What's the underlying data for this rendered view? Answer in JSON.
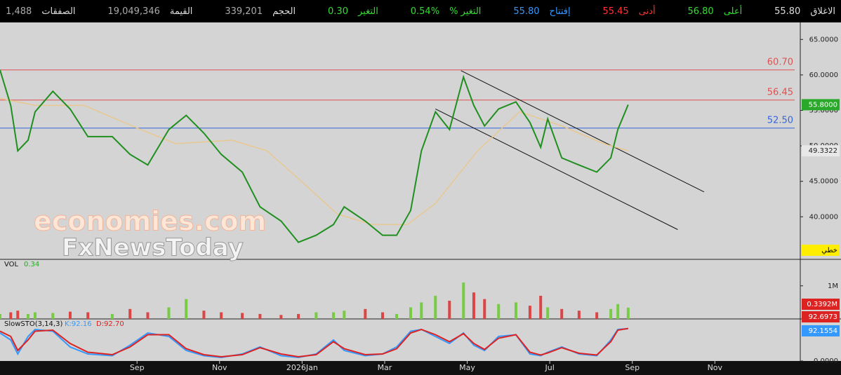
{
  "header": {
    "items": [
      {
        "label": "الاغلاق",
        "value": "55.80",
        "label_color": "#dddddd",
        "color": "#dddddd"
      },
      {
        "label": "أعلى",
        "value": "56.80",
        "label_color": "#33dd33",
        "color": "#33dd33"
      },
      {
        "label": "أدنى",
        "value": "55.45",
        "label_color": "#ff3333",
        "color": "#ff3333"
      },
      {
        "label": "إفتتاح",
        "value": "55.80",
        "label_color": "#3399ff",
        "color": "#3399ff"
      },
      {
        "label": "التغير %",
        "value": "0.54%",
        "label_color": "#33dd33",
        "color": "#33dd33"
      },
      {
        "label": "التغير",
        "value": "0.30",
        "label_color": "#33dd33",
        "color": "#33dd33"
      },
      {
        "label": "الحجم",
        "value": "339,201",
        "label_color": "#dddddd",
        "color": "#aaaaaa"
      },
      {
        "label": "القيمة",
        "value": "19,049,346",
        "label_color": "#dddddd",
        "color": "#aaaaaa"
      },
      {
        "label": "الصفقات",
        "value": "1,488",
        "label_color": "#dddddd",
        "color": "#aaaaaa"
      }
    ]
  },
  "watermark": [
    "economies.com",
    "FxNewsToday"
  ],
  "chart_data": [
    {
      "type": "line",
      "x": [
        -1.32,
        -1.06,
        -0.89,
        -0.64,
        -0.47,
        -0.04,
        0.38,
        0.81,
        1.4,
        1.83,
        2.26,
        2.77,
        3.19,
        3.62,
        4.04,
        4.55,
        4.98,
        5.49,
        5.91,
        6.34,
        6.76,
        7.02,
        7.53,
        7.95,
        8.29,
        8.63,
        8.89,
        9.23,
        9.57,
        9.91,
        10.16,
        10.42,
        10.76,
        11.18,
        11.52,
        11.78,
        11.95,
        12.29,
        12.71,
        13.14,
        13.48,
        13.65,
        13.9
      ],
      "series": [
        {
          "name": "price",
          "color": "#1f8f1f",
          "values": [
            60.7,
            55.7,
            49.3,
            50.8,
            54.8,
            57.7,
            55.2,
            51.3,
            51.3,
            48.8,
            47.3,
            52.3,
            54.3,
            51.8,
            48.8,
            46.3,
            41.4,
            39.4,
            36.4,
            37.4,
            38.9,
            41.4,
            39.4,
            37.4,
            37.4,
            40.9,
            49.3,
            54.8,
            52.3,
            59.7,
            55.7,
            52.8,
            55.2,
            56.2,
            53.3,
            49.8,
            53.8,
            48.3,
            47.3,
            46.3,
            48.3,
            52.3,
            55.8
          ]
        }
      ],
      "ma": {
        "color": "#e8c890",
        "x": [
          -1.32,
          -0.47,
          0.72,
          2.09,
          2.94,
          4.3,
          5.15,
          6,
          6.85,
          7.7,
          8.55,
          9.23,
          10.25,
          11.27,
          12.29,
          13.31,
          13.9
        ],
        "values": [
          56.7,
          55.7,
          55.7,
          52.3,
          50.3,
          50.8,
          49.3,
          44.9,
          40.4,
          38.9,
          38.9,
          41.9,
          49.3,
          54.8,
          52.8,
          50.3,
          49.3
        ]
      },
      "hlines": [
        {
          "value": 60.7,
          "label": "60.70",
          "color": "#e05050"
        },
        {
          "value": 56.45,
          "label": "56.45",
          "color": "#e05050"
        },
        {
          "value": 52.5,
          "label": "52.50",
          "color": "#3366dd"
        }
      ],
      "trendlines": [
        {
          "start": [
            9.85,
            60.6
          ],
          "end": [
            15.74,
            43.5
          ]
        },
        {
          "start": [
            9.23,
            55.2
          ],
          "end": [
            15.1,
            38.2
          ]
        }
      ],
      "xlim": [
        -1.32,
        18.07
      ],
      "xticks": [
        {
          "value": 2,
          "label": "Sep"
        },
        {
          "value": 4,
          "label": "Nov"
        },
        {
          "value": 6,
          "label": "2026Jan"
        },
        {
          "value": 8,
          "label": "Mar"
        },
        {
          "value": 10,
          "label": "May"
        },
        {
          "value": 12,
          "label": "Jul"
        },
        {
          "value": 14,
          "label": "Sep"
        },
        {
          "value": 16,
          "label": "Nov"
        }
      ],
      "ylim": [
        34,
        67.4
      ],
      "yticks": [
        {
          "value": 40,
          "label": "40.0000"
        },
        {
          "value": 45,
          "label": "45.0000"
        },
        {
          "value": 50,
          "label": "50.0000"
        },
        {
          "value": 55,
          "label": "55.0000"
        },
        {
          "value": 60,
          "label": "60.0000"
        },
        {
          "value": 65,
          "label": "65.0000"
        }
      ],
      "price_label": "55.8000",
      "ma_label": "49.3322",
      "mode_label": "خطي"
    },
    {
      "type": "bar",
      "name": "VOL",
      "current": "0.34",
      "up_color": "#77cc44",
      "down_color": "#dd4444",
      "x": [
        -1.32,
        -1.06,
        -0.89,
        -0.64,
        -0.47,
        -0.04,
        0.38,
        0.81,
        1.4,
        1.83,
        2.26,
        2.77,
        3.19,
        3.62,
        4.04,
        4.55,
        4.98,
        5.49,
        5.91,
        6.34,
        6.76,
        7.02,
        7.53,
        7.95,
        8.29,
        8.63,
        8.89,
        9.23,
        9.57,
        9.91,
        10.16,
        10.42,
        10.76,
        11.18,
        11.52,
        11.78,
        11.95,
        12.29,
        12.71,
        13.14,
        13.48,
        13.65,
        13.9
      ],
      "values": [
        0.15,
        0.2,
        0.25,
        0.15,
        0.2,
        0.18,
        0.22,
        0.2,
        0.15,
        0.3,
        0.2,
        0.35,
        0.6,
        0.25,
        0.2,
        0.18,
        0.15,
        0.12,
        0.15,
        0.2,
        0.2,
        0.25,
        0.3,
        0.2,
        0.15,
        0.35,
        0.5,
        0.7,
        0.55,
        1.1,
        0.8,
        0.6,
        0.45,
        0.5,
        0.4,
        0.7,
        0.35,
        0.3,
        0.25,
        0.2,
        0.3,
        0.45,
        0.34
      ],
      "ylim": [
        0,
        1.8
      ],
      "yticks": [
        {
          "value": 1,
          "label": "1M"
        }
      ],
      "axis_label": "0.3392M"
    },
    {
      "type": "line",
      "name": "SlowSTO(3,14,3)",
      "x": [
        -1.32,
        -1.06,
        -0.89,
        -0.64,
        -0.47,
        -0.04,
        0.38,
        0.81,
        1.4,
        1.83,
        2.26,
        2.77,
        3.19,
        3.62,
        4.04,
        4.55,
        4.98,
        5.49,
        5.91,
        6.34,
        6.76,
        7.02,
        7.53,
        7.95,
        8.29,
        8.63,
        8.89,
        9.23,
        9.57,
        9.91,
        10.16,
        10.42,
        10.76,
        11.18,
        11.52,
        11.78,
        11.95,
        12.29,
        12.71,
        13.14,
        13.48,
        13.65,
        13.9
      ],
      "series": [
        {
          "name": "K:92.16",
          "color": "#3399ff",
          "values": [
            80,
            60,
            20,
            70,
            90,
            85,
            40,
            20,
            15,
            45,
            80,
            70,
            30,
            15,
            10,
            20,
            40,
            15,
            10,
            20,
            60,
            30,
            15,
            20,
            40,
            85,
            90,
            70,
            50,
            80,
            45,
            30,
            70,
            75,
            20,
            15,
            25,
            40,
            20,
            15,
            60,
            90,
            92.16
          ]
        },
        {
          "name": "D:92.70",
          "color": "#dd2222",
          "values": [
            85,
            70,
            30,
            60,
            85,
            88,
            50,
            25,
            18,
            40,
            75,
            75,
            35,
            18,
            12,
            18,
            38,
            20,
            12,
            18,
            55,
            35,
            18,
            20,
            35,
            80,
            90,
            75,
            55,
            78,
            50,
            33,
            65,
            75,
            25,
            17,
            23,
            38,
            22,
            17,
            55,
            88,
            92.7
          ]
        }
      ],
      "ylim": [
        0,
        100
      ],
      "yticks": [
        {
          "value": 0,
          "label": "0.0000"
        }
      ],
      "axis_labels": [
        "92.6973",
        "92.1554"
      ]
    }
  ]
}
